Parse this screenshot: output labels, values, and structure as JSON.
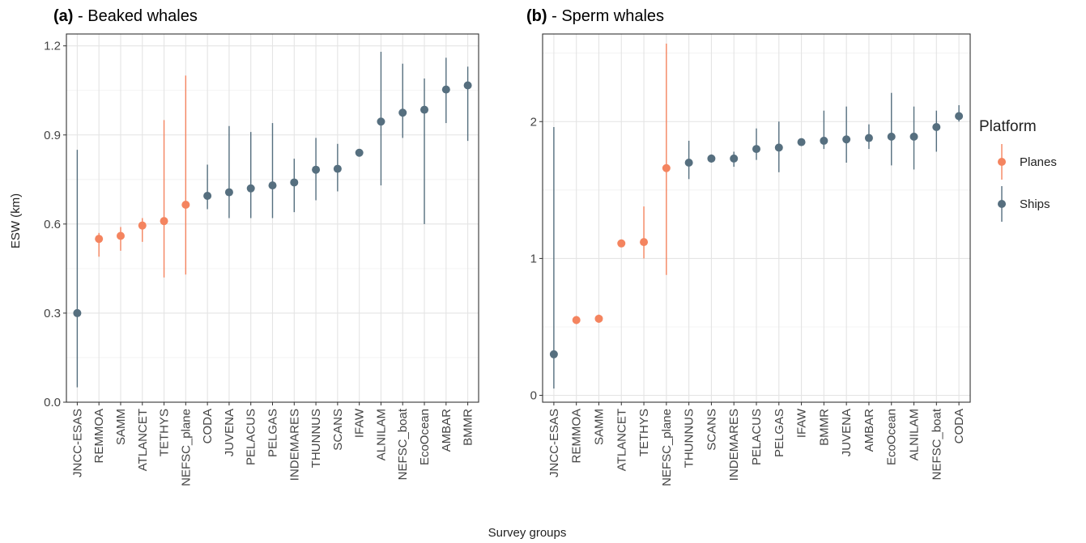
{
  "figure": {
    "xlabel": "Survey groups",
    "ylabel": "ESW (km)"
  },
  "legend": {
    "title": "Platform",
    "entries": [
      {
        "label": "Planes",
        "color": "#F4845F"
      },
      {
        "label": "Ships",
        "color": "#566F7F"
      }
    ]
  },
  "chart_data": [
    {
      "type": "scatter",
      "panel_tag": "(a)",
      "title": " - Beaked whales",
      "xlabel": "Survey groups",
      "ylabel": "ESW (km)",
      "ylim": [
        0,
        1.24
      ],
      "yticks": [
        "0.0",
        "0.3",
        "0.6",
        "0.9",
        "1.2"
      ],
      "ytick_values": [
        0,
        0.3,
        0.6,
        0.9,
        1.2
      ],
      "grid": true,
      "categories": [
        "JNCC-ESAS",
        "REMMOA",
        "SAMM",
        "ATLANCET",
        "TETHYS",
        "NEFSC_plane",
        "CODA",
        "JUVENA",
        "PELACUS",
        "PELGAS",
        "INDEMARES",
        "THUNNUS",
        "SCANS",
        "IFAW",
        "ALNILAM",
        "NEFSC_boat",
        "EcoOcean",
        "AMBAR",
        "BMMR"
      ],
      "points": [
        {
          "x": "JNCC-ESAS",
          "y": 0.3,
          "low": 0.05,
          "high": 0.85,
          "platform": "Ships"
        },
        {
          "x": "REMMOA",
          "y": 0.55,
          "low": 0.49,
          "high": 0.57,
          "platform": "Planes"
        },
        {
          "x": "SAMM",
          "y": 0.56,
          "low": 0.51,
          "high": 0.59,
          "platform": "Planes"
        },
        {
          "x": "ATLANCET",
          "y": 0.595,
          "low": 0.54,
          "high": 0.62,
          "platform": "Planes"
        },
        {
          "x": "TETHYS",
          "y": 0.61,
          "low": 0.42,
          "high": 0.95,
          "platform": "Planes"
        },
        {
          "x": "NEFSC_plane",
          "y": 0.665,
          "low": 0.43,
          "high": 1.1,
          "platform": "Planes"
        },
        {
          "x": "CODA",
          "y": 0.695,
          "low": 0.65,
          "high": 0.8,
          "platform": "Ships"
        },
        {
          "x": "JUVENA",
          "y": 0.707,
          "low": 0.62,
          "high": 0.93,
          "platform": "Ships"
        },
        {
          "x": "PELACUS",
          "y": 0.72,
          "low": 0.62,
          "high": 0.91,
          "platform": "Ships"
        },
        {
          "x": "PELGAS",
          "y": 0.73,
          "low": 0.62,
          "high": 0.94,
          "platform": "Ships"
        },
        {
          "x": "INDEMARES",
          "y": 0.74,
          "low": 0.64,
          "high": 0.82,
          "platform": "Ships"
        },
        {
          "x": "THUNNUS",
          "y": 0.783,
          "low": 0.68,
          "high": 0.89,
          "platform": "Ships"
        },
        {
          "x": "SCANS",
          "y": 0.786,
          "low": 0.71,
          "high": 0.87,
          "platform": "Ships"
        },
        {
          "x": "IFAW",
          "y": 0.84,
          "low": 0.83,
          "high": 0.85,
          "platform": "Ships"
        },
        {
          "x": "ALNILAM",
          "y": 0.945,
          "low": 0.73,
          "high": 1.18,
          "platform": "Ships"
        },
        {
          "x": "NEFSC_boat",
          "y": 0.975,
          "low": 0.89,
          "high": 1.14,
          "platform": "Ships"
        },
        {
          "x": "EcoOcean",
          "y": 0.985,
          "low": 0.6,
          "high": 1.09,
          "platform": "Ships"
        },
        {
          "x": "AMBAR",
          "y": 1.053,
          "low": 0.94,
          "high": 1.16,
          "platform": "Ships"
        },
        {
          "x": "BMMR",
          "y": 1.067,
          "low": 0.88,
          "high": 1.13,
          "platform": "Ships"
        }
      ]
    },
    {
      "type": "scatter",
      "panel_tag": "(b)",
      "title": " - Sperm whales",
      "xlabel": "Survey groups",
      "ylabel": "",
      "ylim": [
        -0.05,
        2.64
      ],
      "yticks": [
        "0",
        "1",
        "2"
      ],
      "ytick_values": [
        0,
        1,
        2
      ],
      "grid": true,
      "categories": [
        "JNCC-ESAS",
        "REMMOA",
        "SAMM",
        "ATLANCET",
        "TETHYS",
        "NEFSC_plane",
        "THUNNUS",
        "SCANS",
        "INDEMARES",
        "PELACUS",
        "PELGAS",
        "IFAW",
        "BMMR",
        "JUVENA",
        "AMBAR",
        "EcoOcean",
        "ALNILAM",
        "NEFSC_boat",
        "CODA"
      ],
      "points": [
        {
          "x": "JNCC-ESAS",
          "y": 0.3,
          "low": 0.05,
          "high": 1.96,
          "platform": "Ships"
        },
        {
          "x": "REMMOA",
          "y": 0.55,
          "low": 0.52,
          "high": 0.58,
          "platform": "Planes"
        },
        {
          "x": "SAMM",
          "y": 0.56,
          "low": 0.53,
          "high": 0.59,
          "platform": "Planes"
        },
        {
          "x": "ATLANCET",
          "y": 1.11,
          "low": 1.09,
          "high": 1.13,
          "platform": "Planes"
        },
        {
          "x": "TETHYS",
          "y": 1.12,
          "low": 1.0,
          "high": 1.38,
          "platform": "Planes"
        },
        {
          "x": "NEFSC_plane",
          "y": 1.66,
          "low": 0.88,
          "high": 2.57,
          "platform": "Planes"
        },
        {
          "x": "THUNNUS",
          "y": 1.7,
          "low": 1.58,
          "high": 1.86,
          "platform": "Ships"
        },
        {
          "x": "SCANS",
          "y": 1.73,
          "low": 1.7,
          "high": 1.76,
          "platform": "Ships"
        },
        {
          "x": "INDEMARES",
          "y": 1.73,
          "low": 1.67,
          "high": 1.78,
          "platform": "Ships"
        },
        {
          "x": "PELACUS",
          "y": 1.8,
          "low": 1.72,
          "high": 1.95,
          "platform": "Ships"
        },
        {
          "x": "PELGAS",
          "y": 1.81,
          "low": 1.63,
          "high": 2.0,
          "platform": "Ships"
        },
        {
          "x": "IFAW",
          "y": 1.85,
          "low": 1.83,
          "high": 1.87,
          "platform": "Ships"
        },
        {
          "x": "BMMR",
          "y": 1.86,
          "low": 1.8,
          "high": 2.08,
          "platform": "Ships"
        },
        {
          "x": "JUVENA",
          "y": 1.87,
          "low": 1.7,
          "high": 2.11,
          "platform": "Ships"
        },
        {
          "x": "AMBAR",
          "y": 1.88,
          "low": 1.8,
          "high": 1.98,
          "platform": "Ships"
        },
        {
          "x": "EcoOcean",
          "y": 1.89,
          "low": 1.68,
          "high": 2.21,
          "platform": "Ships"
        },
        {
          "x": "ALNILAM",
          "y": 1.89,
          "low": 1.65,
          "high": 2.11,
          "platform": "Ships"
        },
        {
          "x": "NEFSC_boat",
          "y": 1.96,
          "low": 1.78,
          "high": 2.08,
          "platform": "Ships"
        },
        {
          "x": "CODA",
          "y": 2.04,
          "low": 2.0,
          "high": 2.12,
          "platform": "Ships"
        }
      ]
    }
  ]
}
